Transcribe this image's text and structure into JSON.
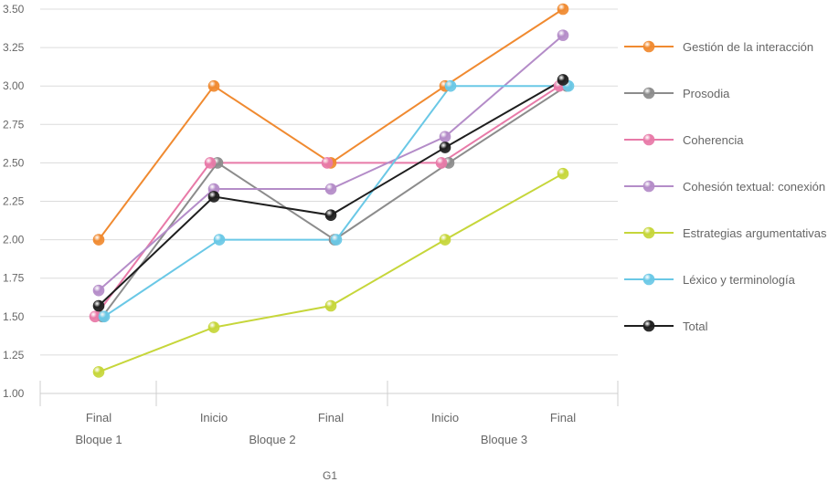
{
  "chart_data": {
    "type": "line",
    "title": "",
    "xlabel": "G1",
    "ylabel": "",
    "ylim": [
      1.0,
      3.5
    ],
    "yticks": [
      "1.00",
      "1.25",
      "1.50",
      "1.75",
      "2.00",
      "2.25",
      "2.50",
      "2.75",
      "3.00",
      "3.25",
      "3.50"
    ],
    "categories": [
      "Final",
      "Inicio",
      "Final",
      "Inicio",
      "Final"
    ],
    "groups": [
      {
        "label": "Bloque 1",
        "span": [
          0,
          0
        ]
      },
      {
        "label": "Bloque 2",
        "span": [
          1,
          2
        ]
      },
      {
        "label": "Bloque 3",
        "span": [
          3,
          4
        ]
      }
    ],
    "grid": true,
    "legend_position": "right",
    "series": [
      {
        "name": "Gestión de la interacción",
        "color": "#f08a30",
        "values": [
          2.0,
          3.0,
          2.5,
          3.0,
          3.5
        ]
      },
      {
        "name": "Prosodia",
        "color": "#8c8c8c",
        "values": [
          1.5,
          2.5,
          2.0,
          2.5,
          3.0
        ]
      },
      {
        "name": "Coherencia",
        "color": "#e87aa8",
        "values": [
          1.5,
          2.5,
          2.5,
          2.5,
          3.0
        ]
      },
      {
        "name": "Cohesión textual: conexión",
        "color": "#b48cc8",
        "values": [
          1.67,
          2.33,
          2.33,
          2.67,
          3.33
        ]
      },
      {
        "name": "Estrategias argumentativas",
        "color": "#c6d63a",
        "values": [
          1.14,
          1.43,
          1.57,
          2.0,
          2.43
        ]
      },
      {
        "name": "Léxico y terminología",
        "color": "#6ac8e6",
        "values": [
          1.5,
          2.0,
          2.0,
          3.0,
          3.0
        ]
      },
      {
        "name": "Total",
        "color": "#1e1e1e",
        "values": [
          1.57,
          2.28,
          2.16,
          2.6,
          3.04
        ]
      }
    ]
  }
}
